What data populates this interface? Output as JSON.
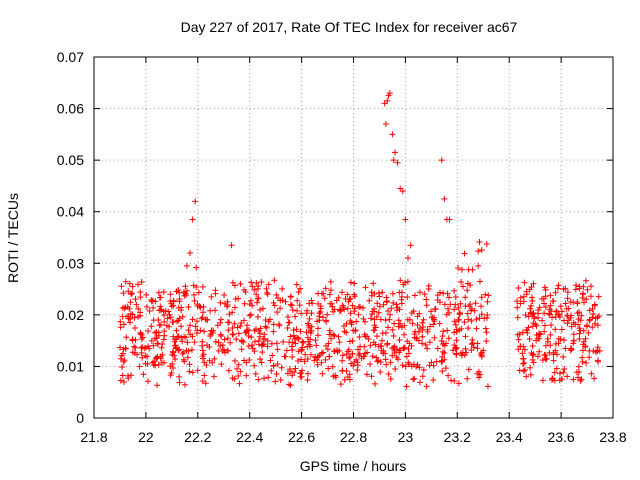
{
  "chart_data": {
    "type": "scatter",
    "title": "Day 227 of 2017, Rate Of TEC Index for receiver ac67",
    "xlabel": "GPS time / hours",
    "ylabel": "ROTI / TECUs",
    "xlim": [
      21.8,
      23.8
    ],
    "ylim": [
      0,
      0.07
    ],
    "x_ticks": [
      "21.8",
      "22",
      "22.2",
      "22.4",
      "22.6",
      "22.8",
      "23",
      "23.2",
      "23.4",
      "23.6",
      "23.8"
    ],
    "y_ticks": [
      "0",
      "0.01",
      "0.02",
      "0.03",
      "0.04",
      "0.05",
      "0.06",
      "0.07"
    ],
    "grid": true,
    "marker": "+",
    "color": "#ff0000",
    "series": [
      {
        "name": "ROTI",
        "x_range": [
          21.9,
          23.75
        ],
        "gap": [
          23.32,
          23.43
        ],
        "typical_range": [
          0.006,
          0.025
        ],
        "highlighted_points": [
          [
            22.18,
            0.0385
          ],
          [
            22.19,
            0.042
          ],
          [
            22.17,
            0.032
          ],
          [
            22.33,
            0.0335
          ],
          [
            22.92,
            0.061
          ],
          [
            22.93,
            0.0615
          ],
          [
            22.94,
            0.063
          ],
          [
            22.935,
            0.0625
          ],
          [
            22.925,
            0.057
          ],
          [
            22.95,
            0.055
          ],
          [
            22.96,
            0.0515
          ],
          [
            22.955,
            0.05
          ],
          [
            22.97,
            0.0495
          ],
          [
            22.98,
            0.0445
          ],
          [
            22.99,
            0.044
          ],
          [
            23.0,
            0.0385
          ],
          [
            23.01,
            0.031
          ],
          [
            23.02,
            0.0335
          ],
          [
            23.14,
            0.05
          ],
          [
            23.15,
            0.0425
          ],
          [
            23.16,
            0.0385
          ],
          [
            23.17,
            0.0385
          ]
        ]
      }
    ]
  }
}
